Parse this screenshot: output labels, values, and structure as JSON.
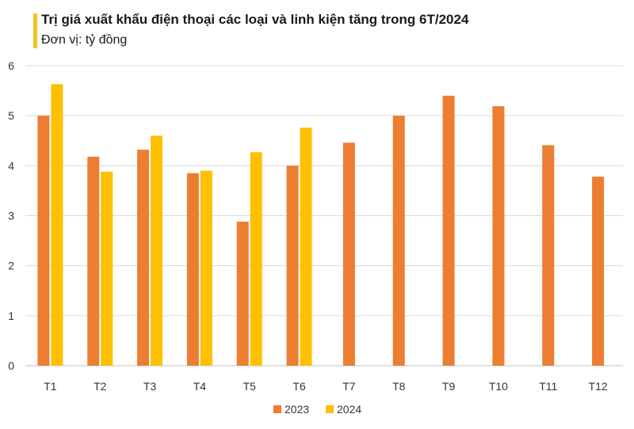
{
  "header": {
    "title": "Trị giá xuất khẩu điện thoại các loại và linh kiện tăng trong 6T/2024",
    "subtitle": "Đơn vị: tỷ đồng"
  },
  "chart_data": {
    "type": "bar",
    "title": "Trị giá xuất khẩu điện thoại các loại và linh kiện tăng trong 6T/2024",
    "subtitle": "Đơn vị: tỷ đồng",
    "categories": [
      "T1",
      "T2",
      "T3",
      "T4",
      "T5",
      "T6",
      "T7",
      "T8",
      "T9",
      "T10",
      "T11",
      "T12"
    ],
    "series": [
      {
        "name": "2023",
        "color": "#ED7D31",
        "values": [
          5.0,
          4.18,
          4.32,
          3.85,
          2.88,
          4.0,
          4.46,
          5.0,
          5.4,
          5.19,
          4.41,
          3.78
        ]
      },
      {
        "name": "2024",
        "color": "#FFC000",
        "values": [
          5.63,
          3.88,
          4.6,
          3.9,
          4.27,
          4.76,
          null,
          null,
          null,
          null,
          null,
          null
        ]
      }
    ],
    "ylim": [
      0,
      6
    ],
    "yticks": [
      0,
      1,
      2,
      3,
      4,
      5,
      6
    ],
    "grid": true,
    "legend": "bottom-center"
  }
}
